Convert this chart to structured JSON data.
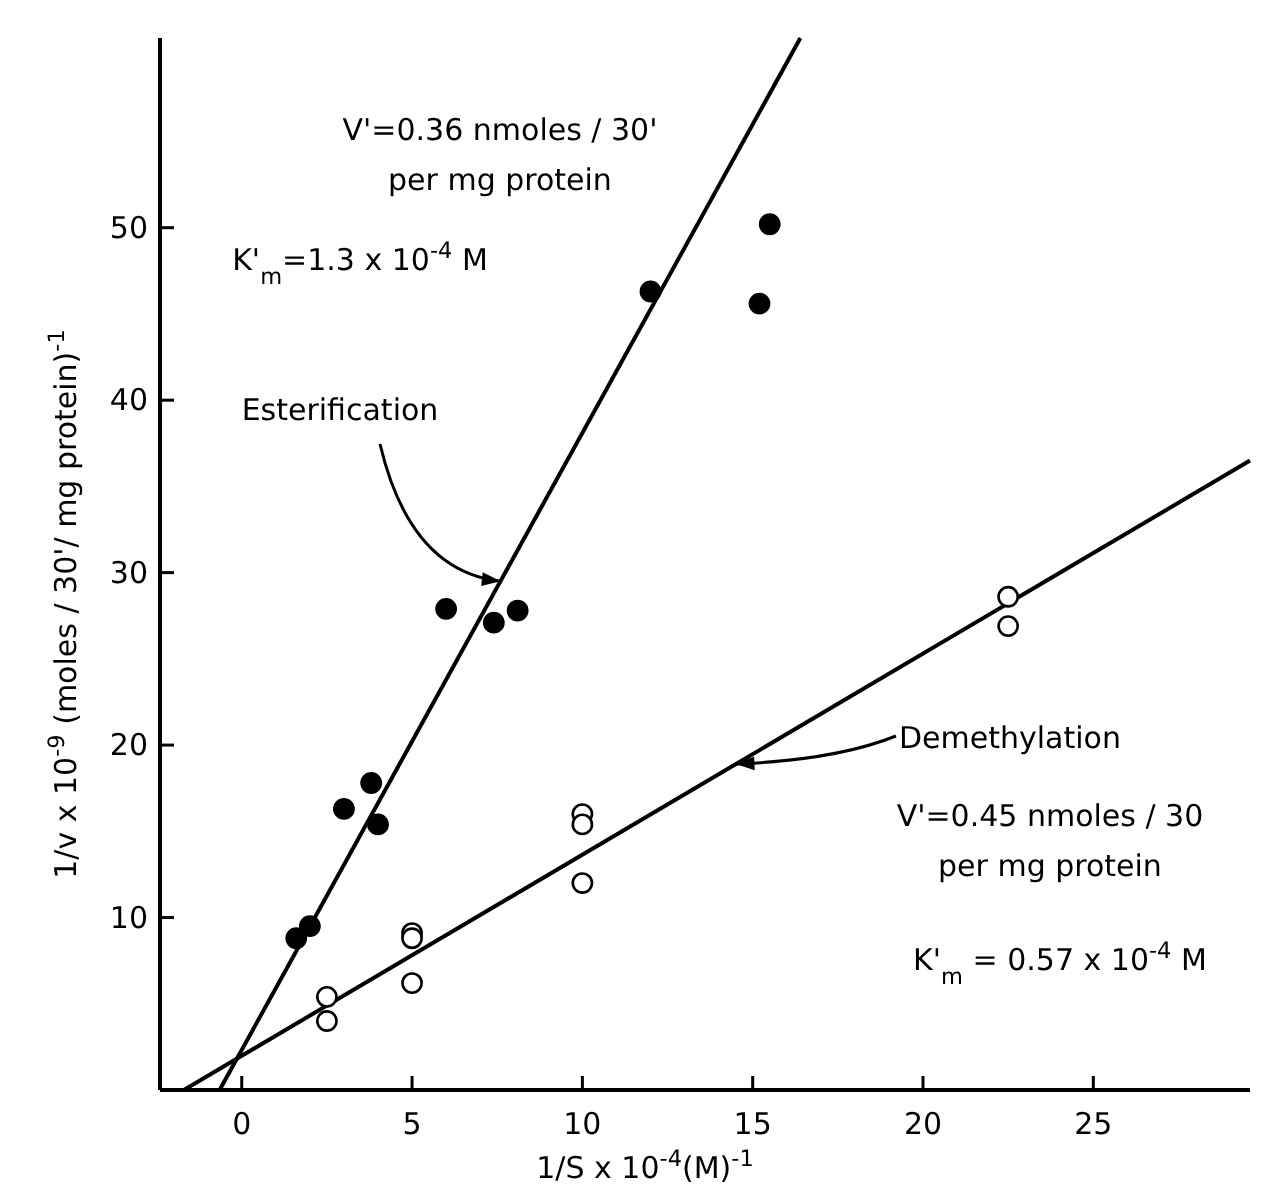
{
  "chart_data": {
    "type": "scatter",
    "xlabel": "1/S x 10$^{-4}$(M)$^{-1}$",
    "ylabel": "1/v x 10$^{-9}$ (moles / 30'/ mg protein)$^{-1}$",
    "xlim": [
      -2.4,
      29.6
    ],
    "ylim": [
      0,
      61
    ],
    "xticks": [
      0,
      5,
      10,
      15,
      20,
      25
    ],
    "yticks": [
      10,
      20,
      30,
      40,
      50
    ],
    "grid": false,
    "marker": "circle",
    "series": [
      {
        "color": "#000000",
        "x": [
          1.6,
          2.0,
          3.0,
          3.8,
          4.0,
          6.0,
          7.4,
          8.1,
          12.0,
          15.2,
          15.5
        ],
        "values": [
          8.8,
          9.5,
          16.3,
          17.8,
          15.4,
          27.9,
          27.1,
          27.8,
          46.3,
          45.6,
          50.2
        ]
      },
      {
        "color": "#ffffff",
        "x": [
          2.5,
          2.5,
          5,
          5,
          5,
          10,
          10,
          10,
          22.5,
          22.5
        ],
        "values": [
          5.4,
          4.0,
          9.1,
          8.8,
          6.2,
          16.0,
          15.4,
          12.0,
          28.6,
          26.9
        ]
      },
      {
        "type": "line",
        "color": "#000000",
        "marker": "none",
        "x": [
          -0.65,
          16.4
        ],
        "values": [
          0,
          61
        ]
      },
      {
        "type": "line",
        "color": "#000000",
        "marker": "none",
        "x": [
          -1.7,
          29.6
        ],
        "values": [
          0,
          36.5
        ]
      }
    ],
    "annotations": [
      {
        "text": "Esterification",
        "x": 7.6,
        "y": 29.5
      },
      {
        "text": "Demethylation",
        "x": 14.5,
        "y": 18.9
      },
      "V'=0.36  nmoles / 30'",
      "per mg protein",
      "K'$_{m}$=1.3 x 10$^{-4}$ M",
      "V'=0.45  nmoles / 30",
      "per mg protein",
      "K'$_{m}$ = 0.57 x 10$^{-4}$  M"
    ]
  }
}
